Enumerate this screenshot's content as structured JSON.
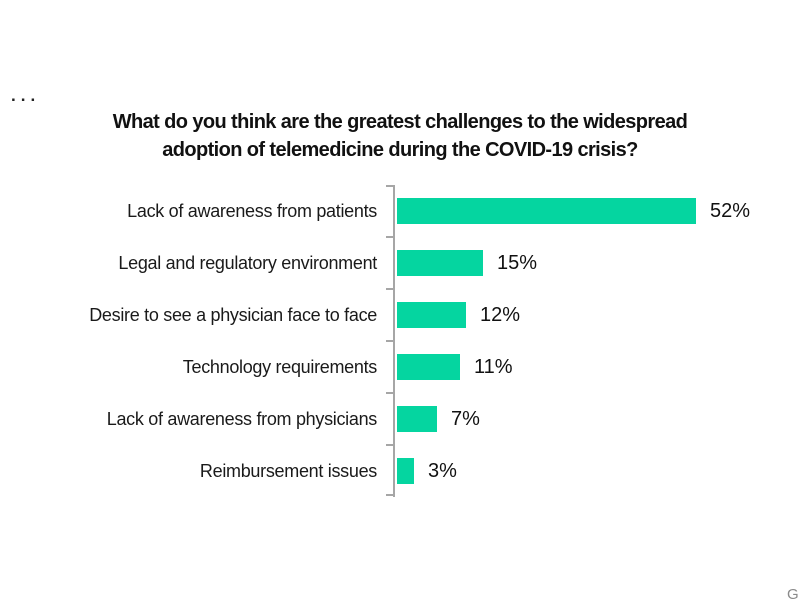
{
  "decorations": {
    "ellipsis_marker": "...",
    "corner_partial_text": "G"
  },
  "chart_data": {
    "type": "bar",
    "orientation": "horizontal",
    "title": "What do you think are the greatest challenges to the widespread adoption of telemedicine during the COVID-19 crisis?",
    "title_lines": [
      "What do you think are the greatest challenges to the widespread",
      "adoption of telemedicine during the COVID-19 crisis?"
    ],
    "categories": [
      "Lack of awareness from patients",
      "Legal and regulatory environment",
      "Desire to see a physician face to face",
      "Technology requirements",
      "Lack of awareness from physicians",
      "Reimbursement issues"
    ],
    "values": [
      52,
      15,
      12,
      11,
      7,
      3
    ],
    "value_suffix": "%",
    "data_labels": [
      "52%",
      "15%",
      "12%",
      "11%",
      "7%",
      "3%"
    ],
    "xlim": [
      0,
      57
    ],
    "grid": false,
    "legend": false,
    "bar_color": "#05D5A0",
    "axis_color": "#A6A6A6",
    "text_color": "#111111"
  }
}
